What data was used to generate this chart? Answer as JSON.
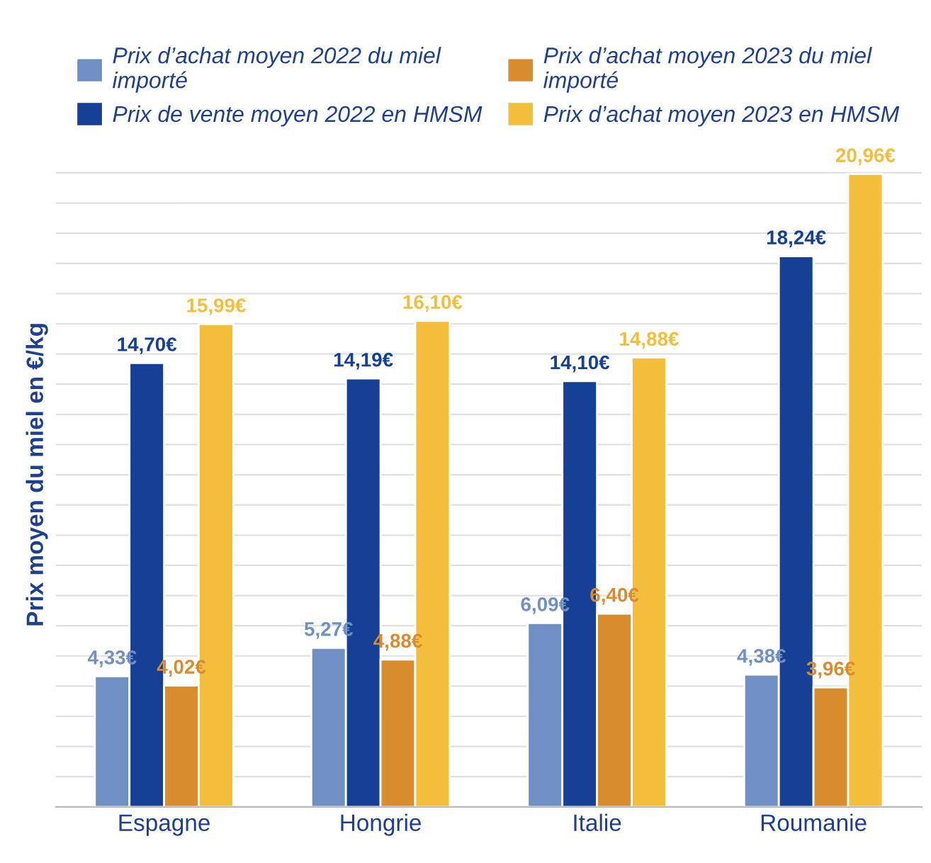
{
  "chart_data": {
    "type": "bar",
    "ylabel": "Prix moyen du miel en €/kg",
    "categories": [
      "Espagne",
      "Hongrie",
      "Italie",
      "Roumanie"
    ],
    "series": [
      {
        "name": "Prix d’achat moyen 2022 du miel importé",
        "color": "#7090c4",
        "values": [
          4.33,
          5.27,
          6.09,
          4.38
        ],
        "value_labels": [
          "4,33€",
          "5,27€",
          "6,09€",
          "4,38€"
        ]
      },
      {
        "name": "Prix de vente moyen 2022 en HMSM",
        "color": "#163f96",
        "values": [
          14.7,
          14.19,
          14.1,
          18.24
        ],
        "value_labels": [
          "14,70€",
          "14,19€",
          "14,10€",
          "18,24€"
        ]
      },
      {
        "name": "Prix d’achat moyen 2023 du miel importé",
        "color": "#d98c2e",
        "values": [
          4.02,
          4.88,
          6.4,
          3.96
        ],
        "value_labels": [
          "4,02€",
          "4,88€",
          "6,40€",
          "3,96€"
        ]
      },
      {
        "name": "Prix d’achat moyen 2023 en HMSM",
        "color": "#f2be3c",
        "values": [
          15.99,
          16.1,
          14.88,
          20.96
        ],
        "value_labels": [
          "15,99€",
          "16,10€",
          "14,88€",
          "20,96€"
        ]
      }
    ],
    "yticks": [
      {
        "value": 0,
        "label": null
      },
      {
        "value": 1,
        "label": null
      },
      {
        "value": 2,
        "label": null
      },
      {
        "value": 3,
        "label": null
      },
      {
        "value": 4,
        "label": null
      },
      {
        "value": 5,
        "label": null
      },
      {
        "value": 6,
        "label": null
      },
      {
        "value": 7,
        "label": null
      },
      {
        "value": 8,
        "label": null
      },
      {
        "value": 9,
        "label": null
      },
      {
        "value": 10,
        "label": null
      },
      {
        "value": 11,
        "label": null
      },
      {
        "value": 12,
        "label": null
      },
      {
        "value": 13,
        "label": null
      },
      {
        "value": 14,
        "label": null
      },
      {
        "value": 15,
        "label": null
      },
      {
        "value": 16,
        "label": null
      },
      {
        "value": 17,
        "label": null
      },
      {
        "value": 18,
        "label": null
      },
      {
        "value": 19,
        "label": null
      },
      {
        "value": 20,
        "label": null
      },
      {
        "value": 21,
        "label": null
      }
    ],
    "tick_labels": "x",
    "grid": "y",
    "legend": "top"
  }
}
